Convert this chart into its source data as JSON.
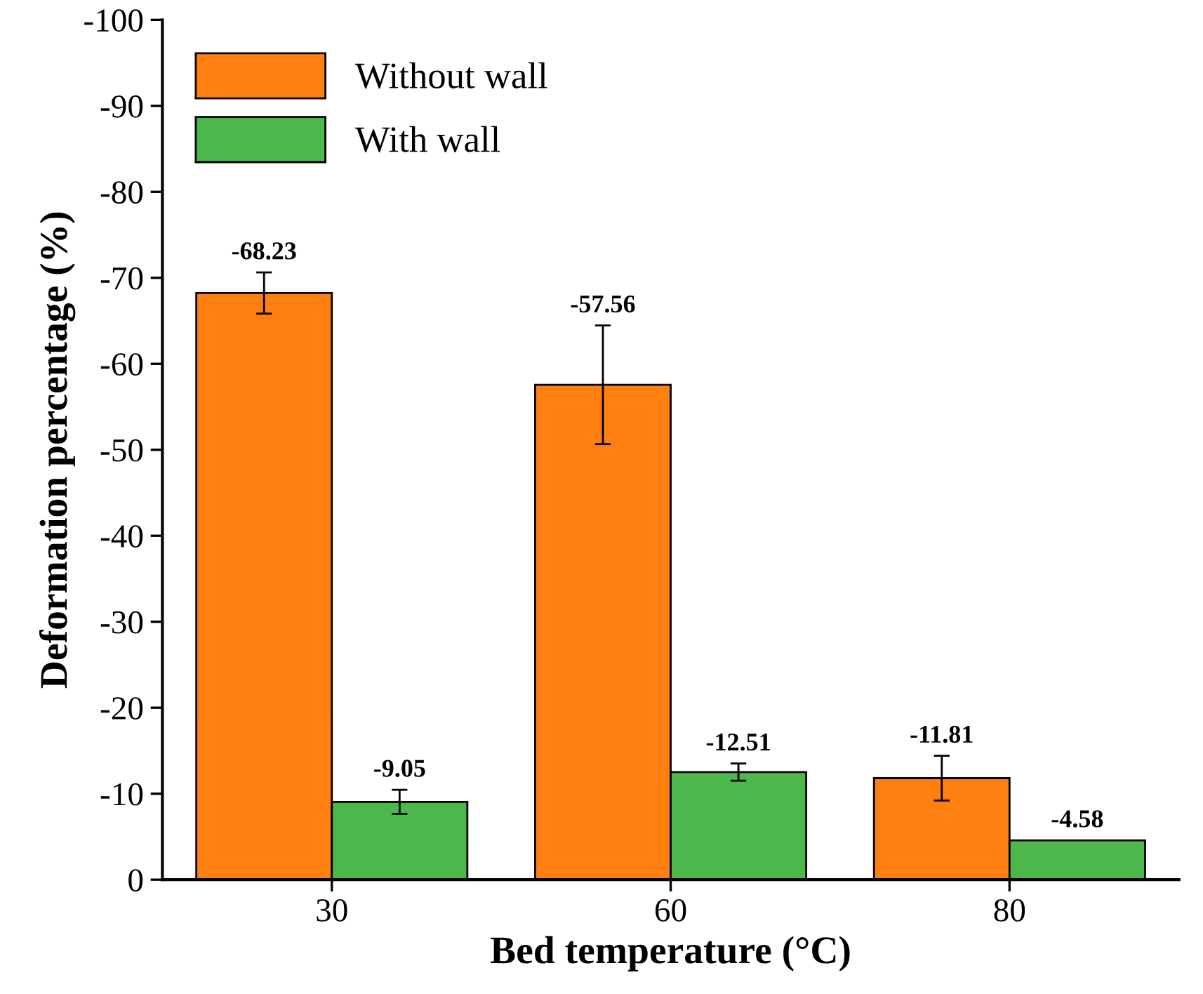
{
  "chart_data": {
    "type": "bar",
    "xlabel": "Bed temperature (°C)",
    "ylabel": "Deformation percentage (%)",
    "categories": [
      "30",
      "60",
      "80"
    ],
    "series": [
      {
        "name": "Without wall",
        "color": "#ff8010",
        "values": [
          -68.23,
          -57.56,
          -11.81
        ],
        "errors": [
          2.4,
          6.9,
          2.6
        ]
      },
      {
        "name": "With wall",
        "color": "#4cb84c",
        "values": [
          -9.05,
          -12.51,
          -4.58
        ],
        "errors": [
          1.4,
          1.0,
          null
        ]
      }
    ],
    "ylim": [
      0,
      -100
    ],
    "yticks": [
      0,
      -10,
      -20,
      -30,
      -40,
      -50,
      -60,
      -70,
      -80,
      -90,
      -100
    ],
    "data_labels": true,
    "legend": "top left",
    "grid": false
  }
}
